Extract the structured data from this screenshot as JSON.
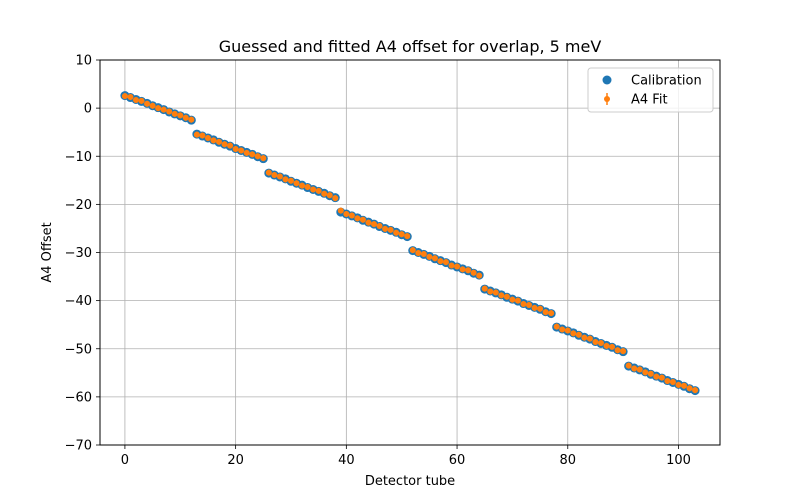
{
  "chart_data": {
    "type": "scatter",
    "title": "Guessed and fitted A4 offset for overlap, 5 meV",
    "xlabel": "Detector tube",
    "ylabel": "A4 Offset",
    "xlim": [
      -4.5,
      107.5
    ],
    "ylim": [
      -70,
      10
    ],
    "xticks": [
      0,
      20,
      40,
      60,
      80,
      100
    ],
    "yticks": [
      -70,
      -60,
      -50,
      -40,
      -30,
      -20,
      -10,
      0,
      10
    ],
    "xtick_labels": [
      "0",
      "20",
      "40",
      "60",
      "80",
      "100"
    ],
    "ytick_labels": [
      "−70",
      "−60",
      "−50",
      "−40",
      "−30",
      "−20",
      "−10",
      "0",
      "10"
    ],
    "grid": true,
    "legend_position": "top-right",
    "series": [
      {
        "name": "Calibration",
        "marker": "circle",
        "color": "#1f77b4",
        "x": [
          0,
          1,
          2,
          3,
          4,
          5,
          6,
          7,
          8,
          9,
          10,
          11,
          12,
          13,
          14,
          15,
          16,
          17,
          18,
          19,
          20,
          21,
          22,
          23,
          24,
          25,
          26,
          27,
          28,
          29,
          30,
          31,
          32,
          33,
          34,
          35,
          36,
          37,
          38,
          39,
          40,
          41,
          42,
          43,
          44,
          45,
          46,
          47,
          48,
          49,
          50,
          51,
          52,
          53,
          54,
          55,
          56,
          57,
          58,
          59,
          60,
          61,
          62,
          63,
          64,
          65,
          66,
          67,
          68,
          69,
          70,
          71,
          72,
          73,
          74,
          75,
          76,
          77,
          78,
          79,
          80,
          81,
          82,
          83,
          84,
          85,
          86,
          87,
          88,
          89,
          90,
          91,
          92,
          93,
          94,
          95,
          96,
          97,
          98,
          99,
          100,
          101,
          102,
          103
        ],
        "y": [
          2.6,
          2.2,
          1.8,
          1.4,
          1.0,
          0.5,
          0.1,
          -0.3,
          -0.8,
          -1.2,
          -1.6,
          -2.0,
          -2.5,
          -5.4,
          -5.8,
          -6.2,
          -6.6,
          -7.1,
          -7.5,
          -7.9,
          -8.4,
          -8.8,
          -9.2,
          -9.6,
          -10.1,
          -10.5,
          -13.5,
          -13.9,
          -14.3,
          -14.7,
          -15.2,
          -15.6,
          -16.0,
          -16.5,
          -16.9,
          -17.3,
          -17.7,
          -18.2,
          -18.6,
          -21.6,
          -22.0,
          -22.4,
          -22.8,
          -23.3,
          -23.7,
          -24.1,
          -24.6,
          -25.0,
          -25.4,
          -25.8,
          -26.3,
          -26.7,
          -29.6,
          -30.0,
          -30.4,
          -30.8,
          -31.3,
          -31.7,
          -32.1,
          -32.6,
          -33.0,
          -33.4,
          -33.8,
          -34.3,
          -34.7,
          -37.6,
          -38.0,
          -38.4,
          -38.8,
          -39.3,
          -39.7,
          -40.1,
          -40.6,
          -41.0,
          -41.4,
          -41.8,
          -42.3,
          -42.7,
          -45.5,
          -45.9,
          -46.3,
          -46.7,
          -47.2,
          -47.6,
          -48.0,
          -48.5,
          -48.9,
          -49.3,
          -49.7,
          -50.2,
          -50.6,
          -53.6,
          -54.0,
          -54.4,
          -54.8,
          -55.3,
          -55.7,
          -56.1,
          -56.6,
          -57.0,
          -57.4,
          -57.8,
          -58.3,
          -58.7
        ]
      },
      {
        "name": "A4 Fit",
        "marker": "small-circle-errorbar",
        "color": "#ff7f0e",
        "x": [
          0,
          1,
          2,
          3,
          4,
          5,
          6,
          7,
          8,
          9,
          10,
          11,
          12,
          13,
          14,
          15,
          16,
          17,
          18,
          19,
          20,
          21,
          22,
          23,
          24,
          25,
          26,
          27,
          28,
          29,
          30,
          31,
          32,
          33,
          34,
          35,
          36,
          37,
          38,
          39,
          40,
          41,
          42,
          43,
          44,
          45,
          46,
          47,
          48,
          49,
          50,
          51,
          52,
          53,
          54,
          55,
          56,
          57,
          58,
          59,
          60,
          61,
          62,
          63,
          64,
          65,
          66,
          67,
          68,
          69,
          70,
          71,
          72,
          73,
          74,
          75,
          76,
          77,
          78,
          79,
          80,
          81,
          82,
          83,
          84,
          85,
          86,
          87,
          88,
          89,
          90,
          91,
          92,
          93,
          94,
          95,
          96,
          97,
          98,
          99,
          100,
          101,
          102,
          103
        ],
        "y": [
          2.5,
          2.3,
          1.7,
          1.5,
          0.9,
          0.5,
          0.0,
          -0.3,
          -0.7,
          -1.2,
          -1.5,
          -2.0,
          -2.4,
          -5.5,
          -5.7,
          -6.2,
          -6.7,
          -7.0,
          -7.5,
          -7.8,
          -8.5,
          -8.8,
          -9.3,
          -9.6,
          -10.0,
          -10.4,
          -13.4,
          -13.9,
          -14.2,
          -14.8,
          -15.1,
          -15.6,
          -16.1,
          -16.4,
          -16.9,
          -17.2,
          -17.8,
          -18.1,
          -18.7,
          -21.3,
          -22.0,
          -22.3,
          -22.9,
          -23.2,
          -23.8,
          -24.1,
          -24.5,
          -25.1,
          -25.3,
          -25.9,
          -26.2,
          -26.6,
          -29.5,
          -30.1,
          -30.3,
          -30.9,
          -31.2,
          -31.8,
          -32.0,
          -32.7,
          -32.9,
          -33.5,
          -33.7,
          -34.2,
          -34.8,
          -37.5,
          -38.1,
          -38.3,
          -38.9,
          -39.2,
          -39.8,
          -40.0,
          -40.7,
          -40.9,
          -41.5,
          -41.7,
          -42.4,
          -42.6,
          -45.4,
          -46.0,
          -46.2,
          -46.8,
          -47.1,
          -47.7,
          -47.9,
          -48.6,
          -48.8,
          -49.4,
          -49.6,
          -50.3,
          -50.5,
          -53.5,
          -54.1,
          -54.3,
          -54.9,
          -55.2,
          -55.8,
          -56.0,
          -56.7,
          -56.9,
          -57.5,
          -57.7,
          -58.2,
          -58.6
        ]
      }
    ]
  }
}
